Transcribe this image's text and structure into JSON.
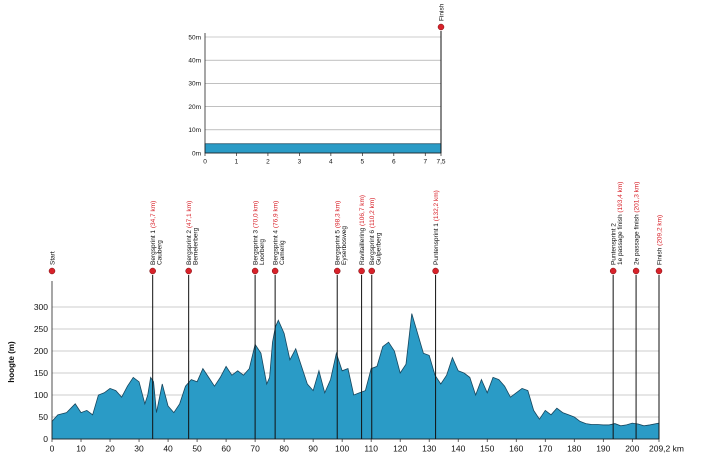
{
  "colors": {
    "fill": "#2a9bc6",
    "stroke": "#16465e",
    "grid": "#9a9a9a",
    "axis": "#222222",
    "marker": "#d8222a",
    "km_text": "#d8222a",
    "label_text": "#111111"
  },
  "chart_data": [
    {
      "type": "area",
      "title": "",
      "xlabel": "",
      "ylabel": "",
      "xlim": [
        0,
        7.5
      ],
      "ylim": [
        0,
        50
      ],
      "x_ticks": [
        "0",
        "1",
        "2",
        "3",
        "4",
        "5",
        "6",
        "7",
        "7,5"
      ],
      "x_tick_values": [
        0,
        1,
        2,
        3,
        4,
        5,
        6,
        7,
        7.5
      ],
      "y_ticks": [
        "0m",
        "10m",
        "20m",
        "30m",
        "40m",
        "50m"
      ],
      "y_tick_values": [
        0,
        10,
        20,
        30,
        40,
        50
      ],
      "grid": true,
      "x": [
        0,
        7.5
      ],
      "y": [
        4,
        4
      ],
      "markers": [
        {
          "name": "Finish",
          "km": "",
          "x": 7.5
        }
      ]
    },
    {
      "type": "area",
      "title": "",
      "xlabel": "",
      "ylabel": "hoogte (m)",
      "xlim": [
        0,
        209.2
      ],
      "ylim": [
        0,
        350
      ],
      "x_ticks": [
        "0",
        "10",
        "20",
        "30",
        "40",
        "50",
        "60",
        "70",
        "80",
        "90",
        "100",
        "110",
        "120",
        "130",
        "140",
        "150",
        "160",
        "170",
        "180",
        "190",
        "200",
        "209,2 km"
      ],
      "x_tick_values": [
        0,
        10,
        20,
        30,
        40,
        50,
        60,
        70,
        80,
        90,
        100,
        110,
        120,
        130,
        140,
        150,
        160,
        170,
        180,
        190,
        200,
        209.2
      ],
      "y_ticks": [
        "0",
        "50",
        "100",
        "150",
        "200",
        "250",
        "300"
      ],
      "y_tick_values": [
        0,
        50,
        100,
        150,
        200,
        250,
        300
      ],
      "grid": true,
      "x": [
        0,
        2,
        5,
        8,
        10,
        12,
        14,
        16,
        18,
        20,
        22,
        24,
        26,
        28,
        30,
        32,
        33,
        34,
        35,
        36,
        38,
        40,
        42,
        44,
        46,
        48,
        50,
        52,
        54,
        56,
        58,
        60,
        62,
        64,
        66,
        68,
        70,
        72,
        74,
        75,
        76,
        77,
        78,
        80,
        82,
        84,
        86,
        88,
        90,
        92,
        94,
        96,
        98,
        100,
        102,
        104,
        106,
        108,
        110,
        112,
        114,
        116,
        118,
        120,
        122,
        124,
        126,
        128,
        130,
        132,
        134,
        136,
        138,
        140,
        142,
        144,
        146,
        148,
        150,
        152,
        154,
        156,
        158,
        160,
        162,
        164,
        166,
        168,
        170,
        172,
        174,
        176,
        178,
        180,
        182,
        184,
        186,
        188,
        190,
        192,
        194,
        196,
        198,
        200,
        202,
        204,
        206,
        209.2
      ],
      "y": [
        40,
        55,
        60,
        80,
        60,
        65,
        55,
        100,
        105,
        115,
        110,
        95,
        120,
        140,
        130,
        80,
        100,
        140,
        130,
        60,
        125,
        75,
        60,
        80,
        120,
        135,
        130,
        160,
        140,
        120,
        140,
        165,
        145,
        155,
        145,
        160,
        215,
        195,
        125,
        140,
        220,
        255,
        270,
        240,
        180,
        205,
        165,
        125,
        110,
        155,
        105,
        135,
        195,
        155,
        160,
        100,
        105,
        110,
        160,
        165,
        210,
        220,
        200,
        150,
        170,
        285,
        240,
        195,
        190,
        145,
        125,
        145,
        185,
        155,
        150,
        140,
        100,
        135,
        105,
        140,
        135,
        120,
        95,
        105,
        115,
        110,
        65,
        45,
        65,
        55,
        70,
        60,
        55,
        50,
        40,
        35,
        33,
        33,
        32,
        32,
        35,
        30,
        32,
        36,
        34,
        30,
        32,
        36
      ],
      "markers": [
        {
          "name": "Start",
          "km": "",
          "x": 0
        },
        {
          "name": "Bergsprint 1 Cauberg",
          "km": "(34,7 km)",
          "x": 34.7
        },
        {
          "name": "Bergsprint 2 Bemelerberg",
          "km": "(47,1 km)",
          "x": 47.1
        },
        {
          "name": "Bergsprint 3 Loorberg",
          "km": "(70,0 km)",
          "x": 70.0
        },
        {
          "name": "Bergsprint 4 Camerig",
          "km": "(76,9 km)",
          "x": 76.9
        },
        {
          "name": "Bergsprint 5 Eyserbosweg",
          "km": "(98,3 km)",
          "x": 98.3
        },
        {
          "name": "Ravitaillering",
          "km": "(106,7 km)",
          "x": 106.7
        },
        {
          "name": "Bergsprint 6 Gulperberg",
          "km": "(110,2 km)",
          "x": 110.2
        },
        {
          "name": "Puntensprint 1",
          "km": "(132,2 km)",
          "x": 132.2
        },
        {
          "name": "Puntensprint 2 1e passage finish",
          "km": "(193,4 km)",
          "x": 193.4
        },
        {
          "name": "2e passage finish",
          "km": "(201,3 km)",
          "x": 201.3
        },
        {
          "name": "Finish",
          "km": "(209,2 km)",
          "x": 209.2
        }
      ]
    }
  ]
}
